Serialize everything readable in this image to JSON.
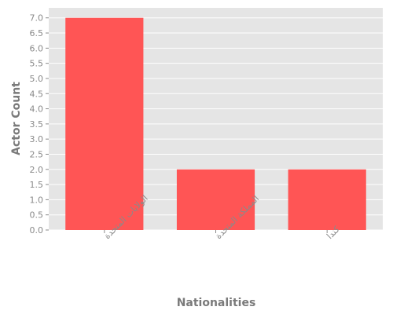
{
  "chart_data": {
    "type": "bar",
    "categories": [
      "الولايات المتحدة",
      "المملكة المتحدة",
      "كندا"
    ],
    "values": [
      7,
      2,
      2
    ],
    "xlabel": "Nationalities",
    "ylabel": "Actor Count",
    "ylim": [
      0,
      7.0
    ],
    "yticks": [
      "0.0",
      "0.5",
      "1.0",
      "1.5",
      "2.0",
      "2.5",
      "3.0",
      "3.5",
      "4.0",
      "4.5",
      "5.0",
      "5.5",
      "6.0",
      "6.5",
      "7.0"
    ],
    "grid": true,
    "bar_color": "#ff5555",
    "plot_background": "#e5e5e5"
  }
}
